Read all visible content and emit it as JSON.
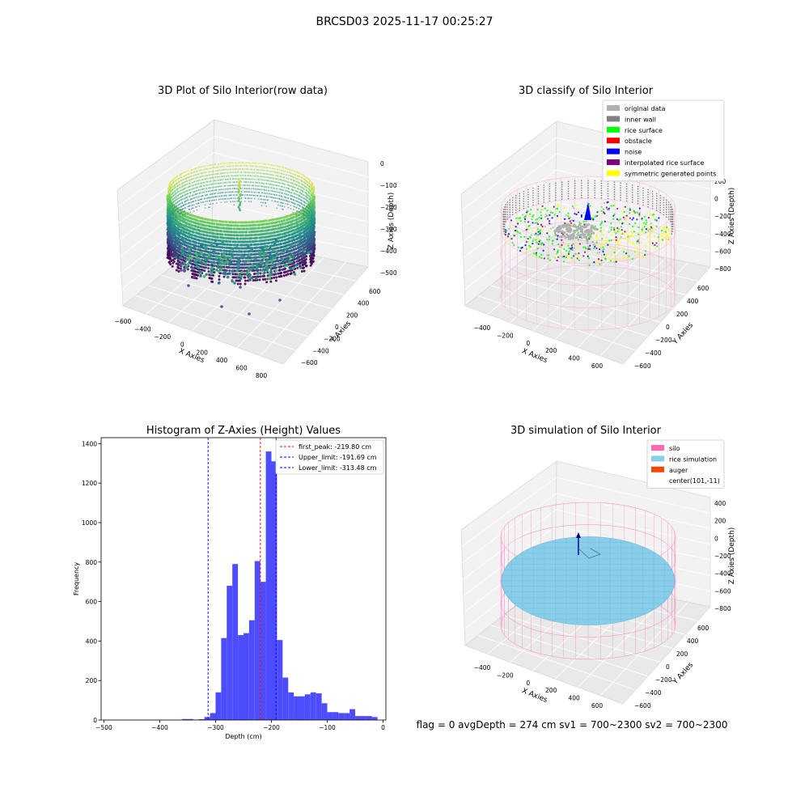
{
  "suptitle": "BRCSD03 2025-11-17 00:25:27",
  "footer": "flag = 0     avgDepth = 274 cm  sv1 = 700~2300  sv2 = 700~2300",
  "colors": {
    "hist_bar": "#4d4dff",
    "peak_line": "#ff0000",
    "limit_line": "#0000ff",
    "silo_pink": "#ff69b4",
    "rice_blue": "#87ceeb",
    "auger": "#ff4500"
  },
  "chart_data": [
    {
      "id": "raw",
      "type": "scatter",
      "title": "3D Plot of Silo Interior(row data)",
      "xlabel": "X Axies",
      "ylabel": "Y Axies",
      "zlabel": "Z Axies (Depth)",
      "xticks": [
        "−600",
        "−400",
        "−200",
        "0",
        "200",
        "400",
        "600",
        "800"
      ],
      "yticks": [
        "−600",
        "−400",
        "−200",
        "0",
        "200",
        "400",
        "600"
      ],
      "zticks": [
        "0",
        "−100",
        "−200",
        "−300",
        "−400",
        "−500"
      ],
      "xlim": [
        -600,
        800
      ],
      "ylim": [
        -600,
        600
      ],
      "zlim": [
        -500,
        0
      ],
      "colormap": "viridis"
    },
    {
      "id": "classify",
      "type": "scatter",
      "title": "3D classify of Silo Interior",
      "xlabel": "X Axies",
      "ylabel": "Y Axies",
      "zlabel": "Z Axies (Depth)",
      "xticks": [
        "−400",
        "−200",
        "0",
        "200",
        "400",
        "600"
      ],
      "yticks": [
        "−600",
        "−400",
        "−200",
        "0",
        "200",
        "400",
        "600"
      ],
      "zticks": [
        "200",
        "0",
        "−200",
        "−400",
        "−600",
        "−800"
      ],
      "zlim": [
        -800,
        200
      ],
      "legend_position": "top-right",
      "legend": [
        {
          "label": "original data",
          "color": "#b0b0b0"
        },
        {
          "label": "inner wall",
          "color": "#808080"
        },
        {
          "label": "rice surface",
          "color": "#00ff00"
        },
        {
          "label": "obstacle",
          "color": "#ff0000"
        },
        {
          "label": "noise",
          "color": "#0000ff"
        },
        {
          "label": "interpolated rice surface",
          "color": "#800080"
        },
        {
          "label": "symmetric generated points",
          "color": "#ffff00"
        }
      ]
    },
    {
      "id": "hist",
      "type": "bar",
      "title": "Histogram of Z-Axies (Height) Values",
      "xlabel": "Depth (cm)",
      "ylabel": "Frequency",
      "xlim": [
        -505,
        5
      ],
      "ylim": [
        0,
        1430
      ],
      "xticks": [
        {
          "v": -500,
          "t": "−500"
        },
        {
          "v": -400,
          "t": "−400"
        },
        {
          "v": -300,
          "t": "−300"
        },
        {
          "v": -200,
          "t": "−200"
        },
        {
          "v": -100,
          "t": "−100"
        },
        {
          "v": 0,
          "t": "0"
        }
      ],
      "yticks": [
        {
          "v": 0,
          "t": "0"
        },
        {
          "v": 200,
          "t": "200"
        },
        {
          "v": 400,
          "t": "400"
        },
        {
          "v": 600,
          "t": "600"
        },
        {
          "v": 800,
          "t": "800"
        },
        {
          "v": 1000,
          "t": "1000"
        },
        {
          "v": 1200,
          "t": "1200"
        },
        {
          "v": 1400,
          "t": "1400"
        }
      ],
      "bin_start": -500,
      "bin_width": 10,
      "values": [
        1,
        1,
        1,
        1,
        1,
        1,
        1,
        1,
        1,
        1,
        1,
        1,
        1,
        1,
        5,
        5,
        2,
        4,
        15,
        35,
        140,
        415,
        680,
        790,
        430,
        440,
        505,
        805,
        700,
        1360,
        1310,
        405,
        215,
        140,
        120,
        120,
        130,
        140,
        135,
        85,
        40,
        40,
        35,
        35,
        55,
        20,
        20,
        20,
        15,
        0
      ],
      "lines": [
        {
          "label": "first_peak: -219.80 cm",
          "x": -219.8,
          "color": "#ff0000"
        },
        {
          "label": "Upper_limit: -191.69 cm",
          "x": -191.69,
          "color": "#0000ff"
        },
        {
          "label": "Lower_limit: -313.48 cm",
          "x": -313.48,
          "color": "#0000ff"
        }
      ],
      "legend_position": "top-right"
    },
    {
      "id": "sim",
      "type": "scatter",
      "title": "3D simulation of Silo Interior",
      "xlabel": "X Axies",
      "ylabel": "Y Axies",
      "zlabel": "Z Axies (Depth)",
      "xticks": [
        "−400",
        "−200",
        "0",
        "200",
        "400",
        "600"
      ],
      "yticks": [
        "−600",
        "−400",
        "−200",
        "0",
        "200",
        "400",
        "600"
      ],
      "zticks": [
        "400",
        "200",
        "0",
        "−200",
        "−400",
        "−600",
        "−800"
      ],
      "zlim": [
        -800,
        400
      ],
      "legend_position": "top-right",
      "legend": [
        {
          "label": "silo",
          "color": "#ff69b4"
        },
        {
          "label": "rice simulation",
          "color": "#87ceeb"
        },
        {
          "label": "auger",
          "color": "#ff4500"
        },
        {
          "label": "center(101,-11)",
          "color": ""
        }
      ]
    }
  ]
}
